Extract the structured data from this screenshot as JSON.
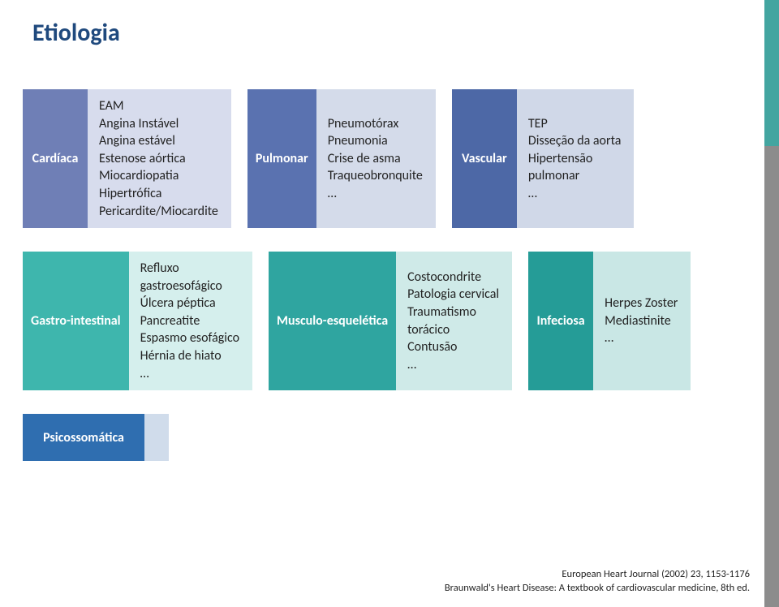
{
  "title": "Etiologia",
  "colors": {
    "title": "#1f497d",
    "cardiaca_tab": "#6f7fb6",
    "cardiaca_content_bg": "#d7dced",
    "pulmonar_tab": "#5a72b0",
    "pulmonar_content_bg": "#d4dbea",
    "vascular_tab": "#4d68a6",
    "vascular_content_bg": "#d0d8e8",
    "gastro_tab": "#3eb6ad",
    "gastro_content_bg": "#d5efed",
    "musculo_tab": "#2fa5a0",
    "musculo_content_bg": "#cfeae8",
    "infeciosa_tab": "#259c97",
    "infeciosa_content_bg": "#c9e7e5",
    "psico_tab": "#2f6eb0",
    "psico_content_bg": "#d0dceb",
    "rail": "#8c8c8c",
    "rail_accent": "#43a5a0"
  },
  "row1": [
    {
      "id": "cardiaca",
      "label": "Cardíaca",
      "items": [
        "EAM",
        "Angina Instável",
        "Angina estável",
        "Estenose aórtica",
        "Miocardiopatia",
        "Hipertrófica",
        "Pericardite/Miocardite"
      ]
    },
    {
      "id": "pulmonar",
      "label": "Pulmonar",
      "items": [
        "Pneumotórax",
        "Pneumonia",
        "Crise de asma",
        "Traqueobronquite",
        "…"
      ]
    },
    {
      "id": "vascular",
      "label": "Vascular",
      "items": [
        "TEP",
        "Disseção da aorta",
        "Hipertensão",
        "pulmonar",
        "…"
      ]
    }
  ],
  "row2": [
    {
      "id": "gastro",
      "label": "Gastro-\nintestinal",
      "items": [
        "Refluxo",
        "gastroesofágico",
        "Úlcera péptica",
        "Pancreatite",
        "Espasmo esofágico",
        "Hérnia de hiato",
        "…"
      ]
    },
    {
      "id": "musculo",
      "label": "Musculo-\nesquelética",
      "items": [
        "Costocondrite",
        "Patologia cervical",
        "Traumatismo",
        "torácico",
        "Contusão",
        "…"
      ]
    },
    {
      "id": "infeciosa",
      "label": "Infeciosa",
      "items": [
        "Herpes Zoster",
        "Mediastinite",
        "…"
      ]
    }
  ],
  "row3": [
    {
      "id": "psico",
      "label": "Psicossomática",
      "items": []
    }
  ],
  "citation": {
    "line1": "European Heart Journal (2002) 23, 1153-1176",
    "line2": "Braunwald's Heart Disease: A textbook of cardiovascular medicine, 8th ed."
  }
}
